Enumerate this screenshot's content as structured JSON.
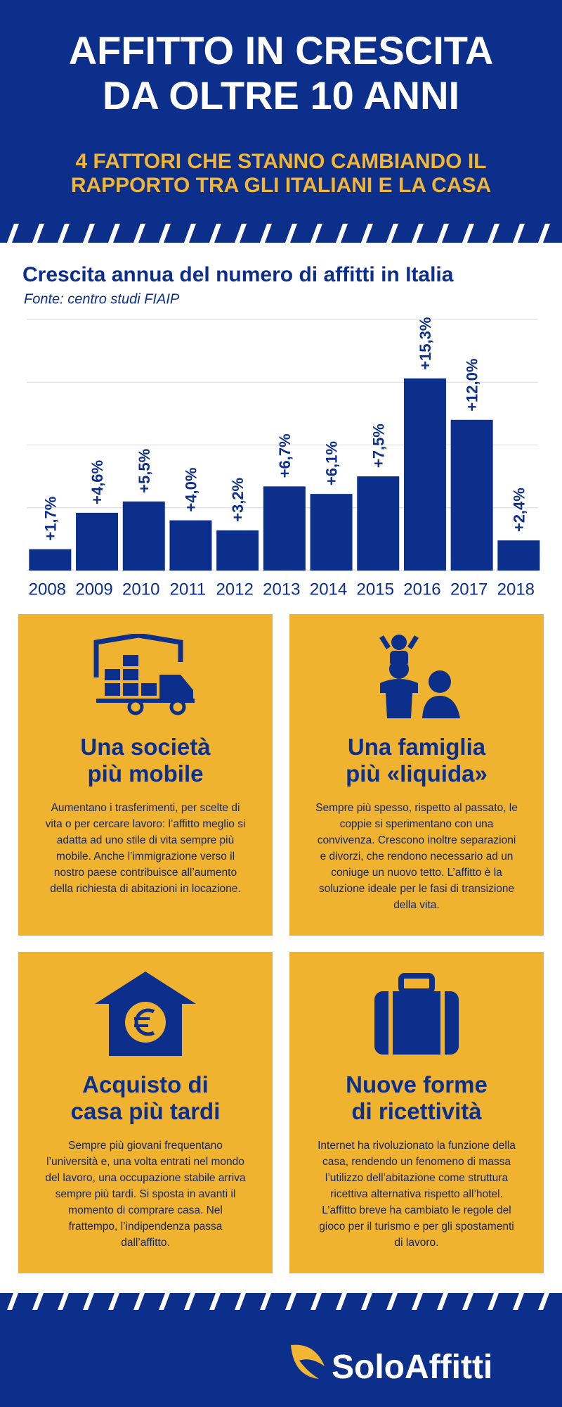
{
  "header": {
    "title_lines": [
      "AFFITTO IN CRESCITA",
      "DA OLTRE 10 ANNI"
    ],
    "subtitle_lines": [
      "4 FATTORI CHE STANNO CAMBIANDO IL",
      "RAPPORTO TRA GLI ITALIANI E LA CASA"
    ]
  },
  "chart_data": {
    "type": "bar",
    "title": "Crescita annua del numero di affitti in Italia",
    "subtitle": "Fonte: centro studi FIAIP",
    "categories": [
      "2008",
      "2009",
      "2010",
      "2011",
      "2012",
      "2013",
      "2014",
      "2015",
      "2016",
      "2017",
      "2018"
    ],
    "values": [
      1.7,
      4.6,
      5.5,
      4.0,
      3.2,
      6.7,
      6.1,
      7.5,
      15.3,
      12.0,
      2.4
    ],
    "value_labels": [
      "+1,7%",
      "+4,6%",
      "+5,5%",
      "+4,0%",
      "+3,2%",
      "+6,7%",
      "+6,1%",
      "+7,5%",
      "+15,3%",
      "+12,0%",
      "+2,4%"
    ],
    "color": "#0d2f8c",
    "ylim": [
      0,
      20
    ],
    "yticks": [
      0,
      5,
      10,
      15,
      20
    ],
    "grid": true
  },
  "cards": [
    {
      "title_lines": [
        "Una società",
        "più mobile"
      ],
      "text": "Aumentano i trasferimenti, per scelte di vita o per cercare lavoro: l’affitto meglio si adatta ad uno stile di vita sempre più mobile. Anche l’immigrazione verso il nostro paese contribuisce all’aumento della richiesta di abitazioni in locazione."
    },
    {
      "title_lines": [
        "Una famiglia",
        "più «liquida»"
      ],
      "text": "Sempre più spesso, rispetto al passato, le coppie si sperimentano con una convivenza. Crescono inoltre separazioni e divorzi, che rendono necessario ad un coniuge un nuovo tetto. L’affitto è la soluzione ideale per le fasi di transizione della vita."
    },
    {
      "title_lines": [
        "Acquisto di",
        "casa più tardi"
      ],
      "text": "Sempre più giovani frequentano l’università e, una volta entrati nel mondo del lavoro, una occupazione stabile arriva sempre più tardi. Si sposta in avanti il momento di comprare casa. Nel frattempo, l’indipendenza passa dall’affitto."
    },
    {
      "title_lines": [
        "Nuove forme",
        "di ricettività"
      ],
      "text": "Internet ha rivoluzionato la funzione della casa, rendendo un fenomeno di massa l’utilizzo dell’abitazione come struttura ricettiva alternativa rispetto all’hotel. L’affitto breve ha cambiato le regole del gioco per il turismo e per gli spostamenti di lavoro."
    }
  ],
  "footer": {
    "logo": "SoloAffitti"
  }
}
